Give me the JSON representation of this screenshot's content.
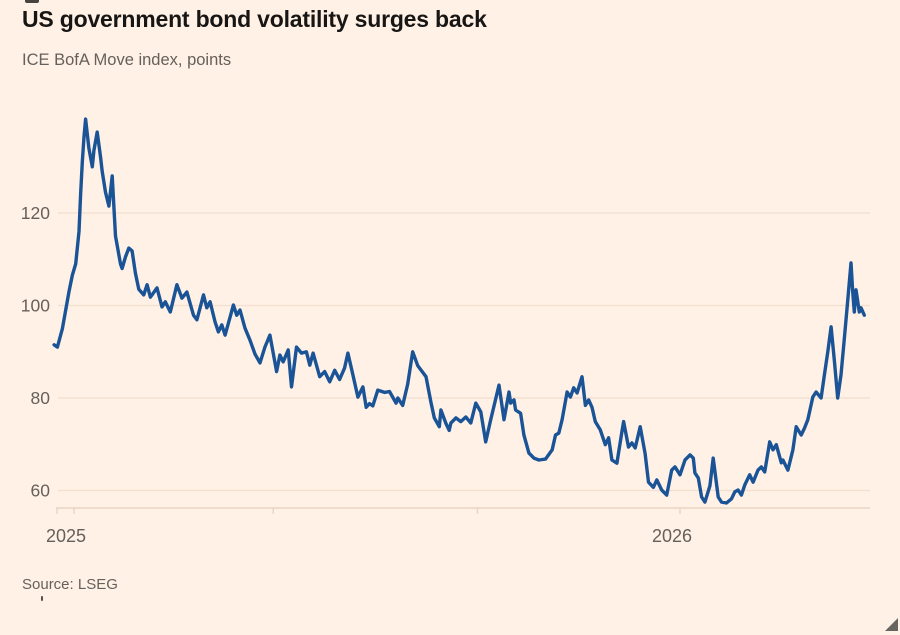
{
  "page": {
    "background": "#FFF1E5"
  },
  "header": {
    "title": "US government bond volatility surges back",
    "subtitle": "ICE BofA Move index, points"
  },
  "footer": {
    "source": "Source: LSEG"
  },
  "chart_data": {
    "type": "line",
    "title": "US government bond volatility surges back",
    "subtitle": "ICE BofA Move index, points",
    "source": "Source: LSEG",
    "series_name": "ICE BofA MOVE index (points)",
    "line_color": "#1A5496",
    "grid_color": "#F2E0D0",
    "axis_color": "#E9D5C3",
    "tick_label_color": "#66605C",
    "grid": true,
    "legend": "none",
    "ylim": [
      56,
      143
    ],
    "yticks": [
      60,
      80,
      100,
      120
    ],
    "xticks": [
      {
        "date": "2025-01-01",
        "label": "2025"
      },
      {
        "date": "2025-05-01",
        "label": ""
      },
      {
        "date": "2025-09-01",
        "label": ""
      },
      {
        "date": "2026-01-01",
        "label": "2026"
      }
    ],
    "x_range": [
      "2024-12-20",
      "2026-04-22"
    ],
    "points": [
      [
        "2024-12-20",
        91.5
      ],
      [
        "2024-12-22",
        91.0
      ],
      [
        "2024-12-25",
        95.0
      ],
      [
        "2024-12-27",
        99.0
      ],
      [
        "2024-12-29",
        103.0
      ],
      [
        "2024-12-31",
        106.5
      ],
      [
        "2025-01-02",
        109.0
      ],
      [
        "2025-01-04",
        116.0
      ],
      [
        "2025-01-05",
        124.0
      ],
      [
        "2025-01-06",
        131.0
      ],
      [
        "2025-01-07",
        136.5
      ],
      [
        "2025-01-08",
        140.3
      ],
      [
        "2025-01-10",
        134.0
      ],
      [
        "2025-01-12",
        130.0
      ],
      [
        "2025-01-13",
        133.5
      ],
      [
        "2025-01-15",
        137.5
      ],
      [
        "2025-01-17",
        132.0
      ],
      [
        "2025-01-18",
        129.0
      ],
      [
        "2025-01-20",
        124.5
      ],
      [
        "2025-01-22",
        121.5
      ],
      [
        "2025-01-24",
        128.0
      ],
      [
        "2025-01-26",
        115.0
      ],
      [
        "2025-01-29",
        109.0
      ],
      [
        "2025-01-30",
        108.0
      ],
      [
        "2025-02-01",
        110.5
      ],
      [
        "2025-02-03",
        112.4
      ],
      [
        "2025-02-05",
        111.8
      ],
      [
        "2025-02-07",
        107.0
      ],
      [
        "2025-02-09",
        103.5
      ],
      [
        "2025-02-12",
        102.3
      ],
      [
        "2025-02-14",
        104.5
      ],
      [
        "2025-02-16",
        101.8
      ],
      [
        "2025-02-20",
        103.8
      ],
      [
        "2025-02-23",
        99.7
      ],
      [
        "2025-02-25",
        100.8
      ],
      [
        "2025-02-28",
        98.6
      ],
      [
        "2025-03-04",
        104.5
      ],
      [
        "2025-03-07",
        101.6
      ],
      [
        "2025-03-10",
        102.9
      ],
      [
        "2025-03-14",
        97.9
      ],
      [
        "2025-03-16",
        96.9
      ],
      [
        "2025-03-20",
        102.3
      ],
      [
        "2025-03-22",
        99.5
      ],
      [
        "2025-03-24",
        100.8
      ],
      [
        "2025-03-27",
        96.4
      ],
      [
        "2025-03-29",
        94.3
      ],
      [
        "2025-03-31",
        95.8
      ],
      [
        "2025-04-02",
        93.6
      ],
      [
        "2025-04-05",
        97.5
      ],
      [
        "2025-04-07",
        100.1
      ],
      [
        "2025-04-09",
        97.9
      ],
      [
        "2025-04-11",
        99.0
      ],
      [
        "2025-04-14",
        95.1
      ],
      [
        "2025-04-17",
        92.5
      ],
      [
        "2025-04-20",
        89.5
      ],
      [
        "2025-04-23",
        87.6
      ],
      [
        "2025-04-26",
        91.0
      ],
      [
        "2025-04-29",
        93.6
      ],
      [
        "2025-05-03",
        85.7
      ],
      [
        "2025-05-05",
        89.3
      ],
      [
        "2025-05-07",
        87.8
      ],
      [
        "2025-05-10",
        90.4
      ],
      [
        "2025-05-12",
        82.4
      ],
      [
        "2025-05-15",
        91.0
      ],
      [
        "2025-05-18",
        89.7
      ],
      [
        "2025-05-21",
        90.0
      ],
      [
        "2025-05-23",
        87.1
      ],
      [
        "2025-05-25",
        89.7
      ],
      [
        "2025-05-29",
        84.6
      ],
      [
        "2025-06-01",
        85.7
      ],
      [
        "2025-06-04",
        83.5
      ],
      [
        "2025-06-07",
        86.0
      ],
      [
        "2025-06-10",
        84.0
      ],
      [
        "2025-06-13",
        86.5
      ],
      [
        "2025-06-15",
        89.7
      ],
      [
        "2025-06-18",
        85.0
      ],
      [
        "2025-06-21",
        80.2
      ],
      [
        "2025-06-24",
        82.4
      ],
      [
        "2025-06-26",
        78.0
      ],
      [
        "2025-06-28",
        78.8
      ],
      [
        "2025-06-30",
        78.3
      ],
      [
        "2025-07-03",
        81.7
      ],
      [
        "2025-07-07",
        81.2
      ],
      [
        "2025-07-10",
        81.4
      ],
      [
        "2025-07-14",
        78.9
      ],
      [
        "2025-07-15",
        80.0
      ],
      [
        "2025-07-18",
        78.4
      ],
      [
        "2025-07-21",
        83.0
      ],
      [
        "2025-07-24",
        90.0
      ],
      [
        "2025-07-27",
        87.0
      ],
      [
        "2025-08-01",
        84.6
      ],
      [
        "2025-08-04",
        79.0
      ],
      [
        "2025-08-06",
        75.7
      ],
      [
        "2025-08-09",
        73.8
      ],
      [
        "2025-08-10",
        77.4
      ],
      [
        "2025-08-13",
        74.5
      ],
      [
        "2025-08-15",
        73.0
      ],
      [
        "2025-08-16",
        74.6
      ],
      [
        "2025-08-19",
        75.7
      ],
      [
        "2025-08-22",
        74.9
      ],
      [
        "2025-08-25",
        75.9
      ],
      [
        "2025-08-28",
        74.6
      ],
      [
        "2025-08-31",
        78.9
      ],
      [
        "2025-09-03",
        77.0
      ],
      [
        "2025-09-06",
        70.5
      ],
      [
        "2025-09-09",
        75.3
      ],
      [
        "2025-09-14",
        82.8
      ],
      [
        "2025-09-17",
        75.3
      ],
      [
        "2025-09-20",
        81.3
      ],
      [
        "2025-09-21",
        78.9
      ],
      [
        "2025-09-23",
        79.6
      ],
      [
        "2025-09-24",
        77.4
      ],
      [
        "2025-09-27",
        76.7
      ],
      [
        "2025-09-29",
        72.0
      ],
      [
        "2025-10-02",
        68.1
      ],
      [
        "2025-10-05",
        67.0
      ],
      [
        "2025-10-08",
        66.6
      ],
      [
        "2025-10-12",
        66.8
      ],
      [
        "2025-10-16",
        68.8
      ],
      [
        "2025-10-18",
        72.0
      ],
      [
        "2025-10-20",
        72.4
      ],
      [
        "2025-10-22",
        75.3
      ],
      [
        "2025-10-25",
        81.3
      ],
      [
        "2025-10-27",
        80.2
      ],
      [
        "2025-10-29",
        82.2
      ],
      [
        "2025-10-31",
        81.1
      ],
      [
        "2025-11-03",
        84.6
      ],
      [
        "2025-11-05",
        78.4
      ],
      [
        "2025-11-07",
        79.6
      ],
      [
        "2025-11-09",
        78.0
      ],
      [
        "2025-11-11",
        74.9
      ],
      [
        "2025-11-14",
        73.1
      ],
      [
        "2025-11-17",
        69.9
      ],
      [
        "2025-11-19",
        71.4
      ],
      [
        "2025-11-21",
        66.6
      ],
      [
        "2025-11-24",
        65.9
      ],
      [
        "2025-11-27",
        72.7
      ],
      [
        "2025-11-28",
        74.9
      ],
      [
        "2025-12-01",
        69.4
      ],
      [
        "2025-12-03",
        70.3
      ],
      [
        "2025-12-05",
        69.2
      ],
      [
        "2025-12-08",
        73.8
      ],
      [
        "2025-12-11",
        68.0
      ],
      [
        "2025-12-13",
        61.8
      ],
      [
        "2025-12-16",
        60.7
      ],
      [
        "2025-12-18",
        62.3
      ],
      [
        "2025-12-21",
        60.1
      ],
      [
        "2025-12-24",
        59.0
      ],
      [
        "2025-12-27",
        64.4
      ],
      [
        "2025-12-29",
        65.1
      ],
      [
        "2026-01-01",
        63.4
      ],
      [
        "2026-01-04",
        66.6
      ],
      [
        "2026-01-07",
        67.7
      ],
      [
        "2026-01-09",
        67.0
      ],
      [
        "2026-01-10",
        63.8
      ],
      [
        "2026-01-12",
        62.7
      ],
      [
        "2026-01-14",
        58.6
      ],
      [
        "2026-01-16",
        57.5
      ],
      [
        "2026-01-19",
        61.0
      ],
      [
        "2026-01-21",
        67.0
      ],
      [
        "2026-01-24",
        58.6
      ],
      [
        "2026-01-26",
        57.5
      ],
      [
        "2026-01-29",
        57.3
      ],
      [
        "2026-02-01",
        58.2
      ],
      [
        "2026-02-03",
        59.7
      ],
      [
        "2026-02-05",
        60.1
      ],
      [
        "2026-02-07",
        59.0
      ],
      [
        "2026-02-09",
        61.2
      ],
      [
        "2026-02-12",
        63.4
      ],
      [
        "2026-02-14",
        61.8
      ],
      [
        "2026-02-17",
        64.4
      ],
      [
        "2026-02-19",
        65.1
      ],
      [
        "2026-02-21",
        64.0
      ],
      [
        "2026-02-24",
        70.5
      ],
      [
        "2026-02-26",
        68.8
      ],
      [
        "2026-02-28",
        69.9
      ],
      [
        "2026-03-03",
        66.0
      ],
      [
        "2026-03-04",
        66.6
      ],
      [
        "2026-03-07",
        64.4
      ],
      [
        "2026-03-10",
        68.8
      ],
      [
        "2026-03-12",
        73.8
      ],
      [
        "2026-03-15",
        72.0
      ],
      [
        "2026-03-17",
        73.5
      ],
      [
        "2026-03-19",
        75.3
      ],
      [
        "2026-03-22",
        80.2
      ],
      [
        "2026-03-24",
        81.3
      ],
      [
        "2026-03-27",
        80.0
      ],
      [
        "2026-03-29",
        85.0
      ],
      [
        "2026-03-31",
        90.0
      ],
      [
        "2026-04-02",
        95.4
      ],
      [
        "2026-04-04",
        88.0
      ],
      [
        "2026-04-06",
        80.0
      ],
      [
        "2026-04-08",
        85.0
      ],
      [
        "2026-04-10",
        93.0
      ],
      [
        "2026-04-12",
        101.0
      ],
      [
        "2026-04-14",
        109.2
      ],
      [
        "2026-04-15",
        103.0
      ],
      [
        "2026-04-16",
        98.6
      ],
      [
        "2026-04-17",
        103.4
      ],
      [
        "2026-04-19",
        98.6
      ],
      [
        "2026-04-20",
        99.5
      ],
      [
        "2026-04-22",
        97.9
      ]
    ]
  }
}
